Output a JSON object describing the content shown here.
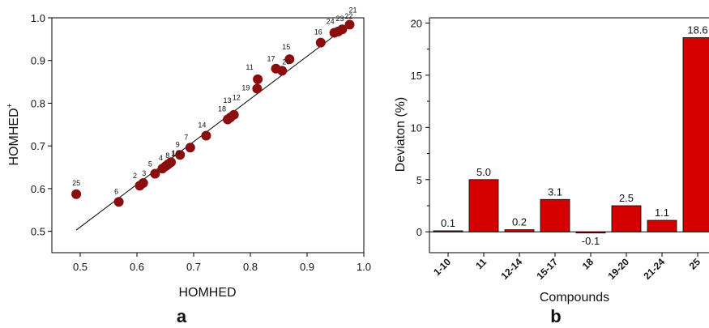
{
  "colors": {
    "marker": "#8b0d0d",
    "bar": "#d40000",
    "axis": "#000000"
  },
  "panels": {
    "a_label": "a",
    "b_label": "b"
  },
  "chart_data": [
    {
      "type": "scatter",
      "xlabel": "HOMHED",
      "ylabel_main": "HOMHED",
      "ylabel_sup": "+",
      "xlim": [
        0.45,
        1.0
      ],
      "ylim": [
        0.45,
        1.0
      ],
      "xticks": [
        "0.5",
        "0.6",
        "0.7",
        "0.8",
        "0.9",
        "1.0"
      ],
      "yticks": [
        "0.5",
        "0.6",
        "0.7",
        "0.8",
        "0.9",
        "1.0"
      ],
      "fit_line": {
        "x": [
          0.493,
          0.975
        ],
        "y": [
          0.503,
          0.985
        ]
      },
      "points": [
        {
          "label": "25",
          "x": 0.493,
          "y": 0.587
        },
        {
          "label": "6",
          "x": 0.568,
          "y": 0.569
        },
        {
          "label": "2",
          "x": 0.605,
          "y": 0.607
        },
        {
          "label": "3",
          "x": 0.611,
          "y": 0.613
        },
        {
          "label": "5",
          "x": 0.632,
          "y": 0.635
        },
        {
          "label": "4",
          "x": 0.645,
          "y": 0.647
        },
        {
          "label": "8",
          "x": 0.651,
          "y": 0.653
        },
        {
          "label": "1",
          "x": 0.655,
          "y": 0.657
        },
        {
          "label": "10",
          "x": 0.66,
          "y": 0.662
        },
        {
          "label": "9",
          "x": 0.676,
          "y": 0.679
        },
        {
          "label": "7",
          "x": 0.694,
          "y": 0.696
        },
        {
          "label": "14",
          "x": 0.722,
          "y": 0.724
        },
        {
          "label": "18",
          "x": 0.76,
          "y": 0.762
        },
        {
          "label": "13",
          "x": 0.765,
          "y": 0.767
        },
        {
          "label": "12",
          "x": 0.771,
          "y": 0.773
        },
        {
          "label": "19",
          "x": 0.812,
          "y": 0.834
        },
        {
          "label": "11",
          "x": 0.813,
          "y": 0.856
        },
        {
          "label": "17",
          "x": 0.845,
          "y": 0.881
        },
        {
          "label": "20",
          "x": 0.856,
          "y": 0.876
        },
        {
          "label": "15",
          "x": 0.869,
          "y": 0.903
        },
        {
          "label": "16",
          "x": 0.924,
          "y": 0.942
        },
        {
          "label": "24",
          "x": 0.948,
          "y": 0.965
        },
        {
          "label": "23",
          "x": 0.955,
          "y": 0.968
        },
        {
          "label": "22",
          "x": 0.962,
          "y": 0.973
        },
        {
          "label": "21",
          "x": 0.975,
          "y": 0.984
        }
      ]
    },
    {
      "type": "bar",
      "xlabel": "Compounds",
      "ylabel": "Deviaton (%)",
      "ylim": [
        -2,
        20.5
      ],
      "yticks": [
        "0",
        "5",
        "10",
        "15",
        "20"
      ],
      "categories": [
        "1-10",
        "11",
        "12-14",
        "15-17",
        "18",
        "19-20",
        "21-24",
        "25"
      ],
      "values": [
        0.1,
        5.0,
        0.2,
        3.1,
        -0.1,
        2.5,
        1.1,
        18.6
      ],
      "value_labels": [
        "0.1",
        "5.0",
        "0.2",
        "3.1",
        "-0.1",
        "2.5",
        "1.1",
        "18.6"
      ]
    }
  ]
}
